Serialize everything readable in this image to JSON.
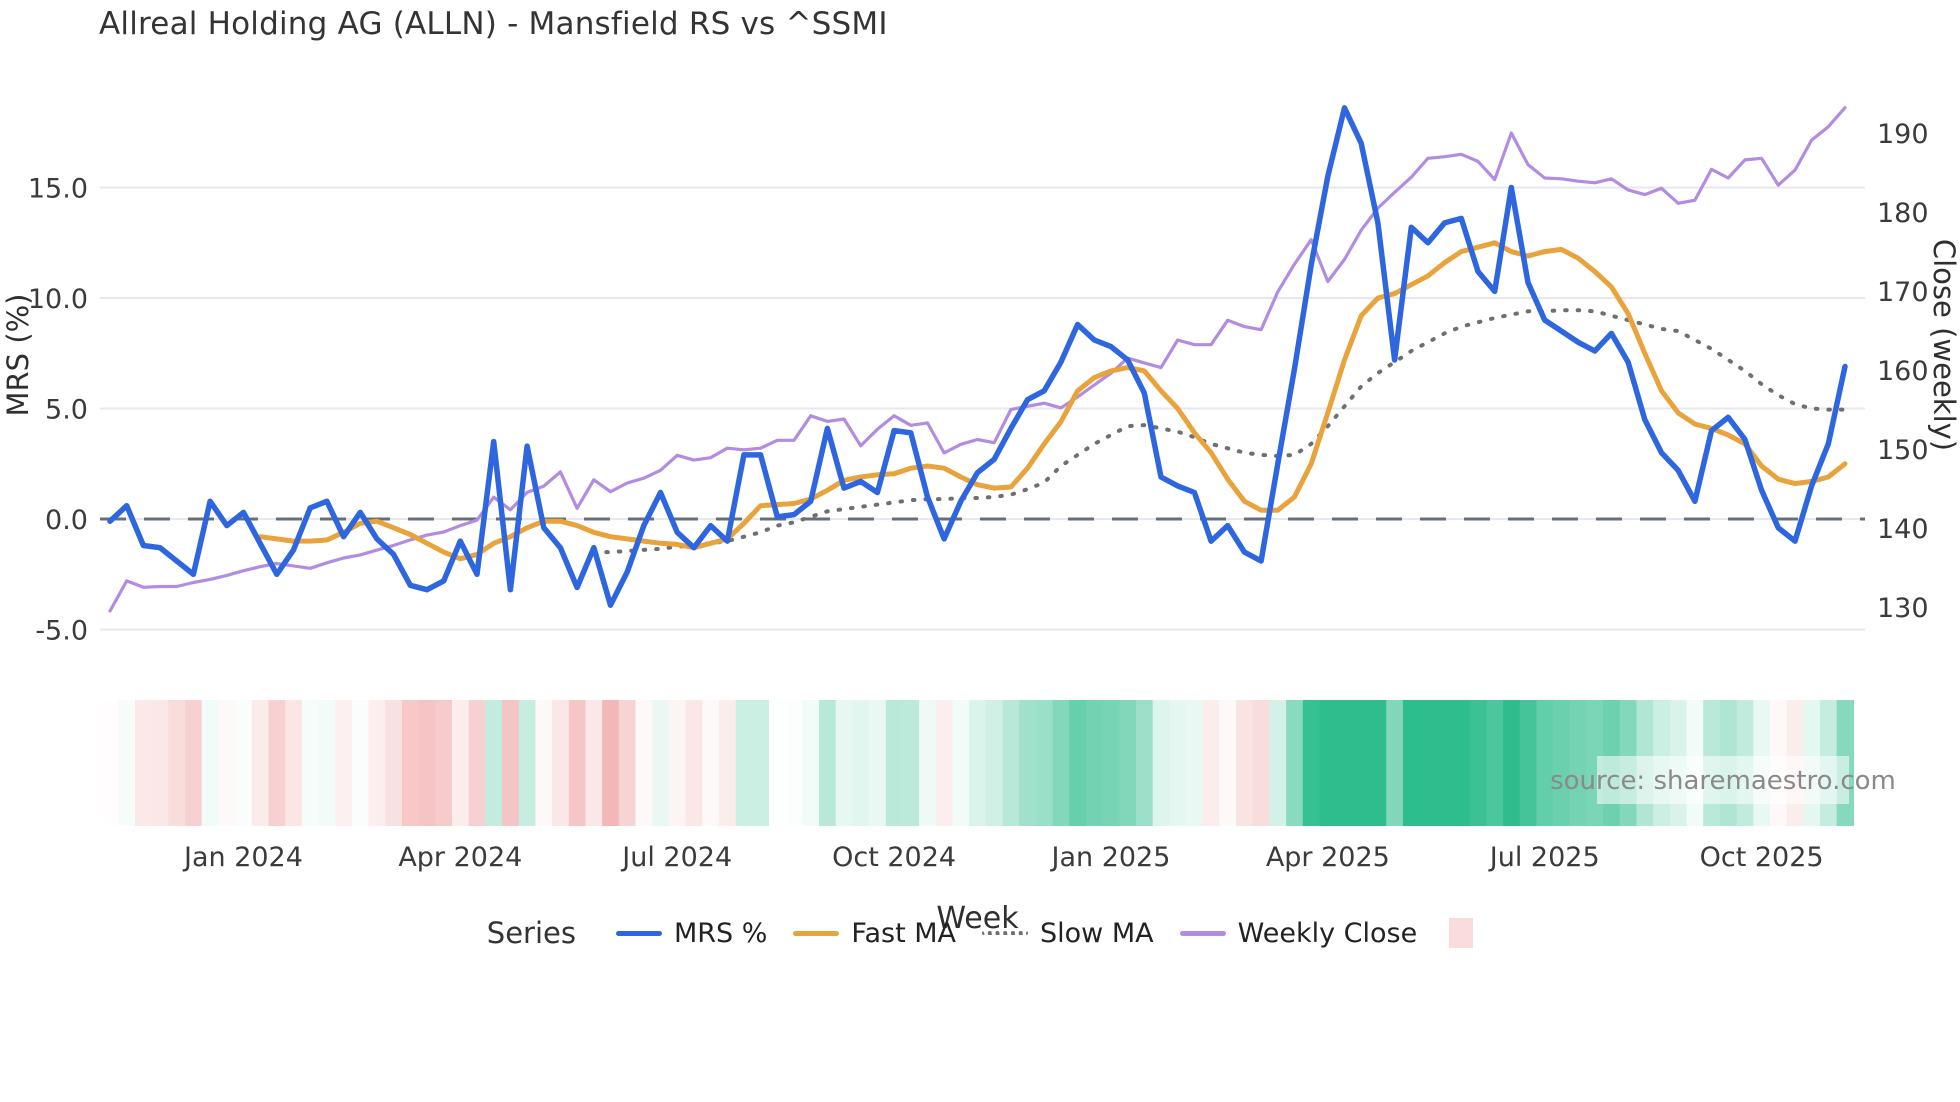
{
  "title": "Allreal Holding AG (ALLN) - Mansfield RS vs ^SSMI",
  "source_text": "source: sharemaestro.com",
  "axes": {
    "left_label": "MRS (%)",
    "right_label": "Close (weekly)",
    "x_label": "Week",
    "left_tick_labels": [
      "-5.0",
      "0.0",
      "5.0",
      "10.0",
      "15.0"
    ],
    "left_tick_values": [
      -5,
      0,
      5,
      10,
      15
    ],
    "right_tick_labels": [
      "130",
      "140",
      "150",
      "160",
      "170",
      "180",
      "190"
    ],
    "right_tick_values": [
      130,
      140,
      150,
      160,
      170,
      180,
      190
    ],
    "x_tick_labels": [
      "Jan 2024",
      "Apr 2024",
      "Jul 2024",
      "Oct 2024",
      "Jan 2025",
      "Apr 2025",
      "Jul 2025",
      "Oct 2025"
    ]
  },
  "legend": {
    "title": "Series",
    "items": [
      {
        "label": "MRS %",
        "color": "#2e66e0",
        "style": "solid"
      },
      {
        "label": "Fast MA",
        "color": "#e8a33c",
        "style": "solid"
      },
      {
        "label": "Slow MA",
        "color": "#6f6f6f",
        "style": "dotted"
      },
      {
        "label": "Weekly Close",
        "color": "#b18ce0",
        "style": "solid"
      }
    ],
    "heatmap_swatch_color": "#fbdcdc"
  },
  "colors": {
    "grid": "#e7e7f0",
    "zero_dash": "#4f5a66",
    "tick_text": "#3b3b3b",
    "axis_title_text": "#2f2f2f",
    "heat_green_full": "#2ebd8d",
    "heat_red_full": "#ec9090",
    "source_text": "#8a8a8a",
    "source_box": "rgba(255,255,255,0.55)"
  },
  "chart_data": {
    "type": "line",
    "title": "Allreal Holding AG (ALLN) - Mansfield RS vs ^SSMI",
    "xlabel": "Week",
    "ylabel_left": "MRS (%)",
    "ylabel_right": "Close (weekly)",
    "x_unit": "weekly points, Nov 2023 - Nov 2025",
    "n_weeks": 105,
    "x_tick_weeks": [
      8,
      21,
      34,
      47,
      60,
      73,
      86,
      99
    ],
    "x_tick_labels": [
      "Jan 2024",
      "Apr 2024",
      "Jul 2024",
      "Oct 2024",
      "Jan 2025",
      "Apr 2025",
      "Jul 2025",
      "Oct 2025"
    ],
    "ylim_left": [
      -6.2,
      20.4
    ],
    "ylim_right": [
      125,
      199
    ],
    "grid": "horizontal-left-ticks",
    "legend_position": "bottom",
    "zero_line": {
      "axis": "left",
      "value": 0,
      "style": "dashed"
    },
    "series": [
      {
        "name": "MRS %",
        "axis": "left",
        "color": "#2e66e0",
        "style": "solid",
        "width": 5.5,
        "values": [
          -0.1,
          0.6,
          -1.2,
          -1.3,
          -1.9,
          -2.5,
          0.8,
          -0.3,
          0.3,
          -1.1,
          -2.5,
          -1.4,
          0.5,
          0.8,
          -0.8,
          0.3,
          -0.9,
          -1.6,
          -3.0,
          -3.2,
          -2.8,
          -1.0,
          -2.5,
          3.5,
          -3.2,
          3.3,
          -0.4,
          -1.3,
          -3.1,
          -1.3,
          -3.9,
          -2.4,
          -0.3,
          1.2,
          -0.6,
          -1.3,
          -0.3,
          -1.0,
          2.9,
          2.9,
          0.1,
          0.2,
          0.8,
          4.1,
          1.4,
          1.7,
          1.2,
          4.0,
          3.9,
          1.0,
          -0.9,
          0.8,
          2.1,
          2.7,
          4.1,
          5.4,
          5.8,
          7.1,
          8.8,
          8.1,
          7.8,
          7.2,
          5.7,
          1.9,
          1.5,
          1.2,
          -1.0,
          -0.3,
          -1.5,
          -1.9,
          2.5,
          6.8,
          11.5,
          15.5,
          18.6,
          17.0,
          13.4,
          7.2,
          13.2,
          12.5,
          13.4,
          13.6,
          11.2,
          10.3,
          15.0,
          10.7,
          9.0,
          8.5,
          8.0,
          7.6,
          8.4,
          7.1,
          4.5,
          3.0,
          2.2,
          0.8,
          4.0,
          4.6,
          3.6,
          1.3,
          -0.4,
          -1.0,
          1.5,
          3.4,
          6.9
        ]
      },
      {
        "name": "Fast MA",
        "axis": "left",
        "color": "#e8a33c",
        "style": "solid",
        "width": 5,
        "values": [
          null,
          null,
          null,
          null,
          null,
          null,
          null,
          null,
          null,
          -0.8,
          -0.9,
          -1.0,
          -1.0,
          -0.95,
          -0.6,
          -0.2,
          -0.1,
          -0.4,
          -0.7,
          -1.1,
          -1.5,
          -1.8,
          -1.6,
          -1.1,
          -0.8,
          -0.4,
          -0.1,
          -0.1,
          -0.3,
          -0.6,
          -0.8,
          -0.9,
          -1.0,
          -1.1,
          -1.15,
          -1.3,
          -1.1,
          -0.9,
          -0.2,
          0.6,
          0.65,
          0.7,
          0.9,
          1.3,
          1.75,
          1.9,
          2.0,
          2.05,
          2.3,
          2.4,
          2.3,
          1.9,
          1.55,
          1.4,
          1.45,
          2.3,
          3.4,
          4.4,
          5.8,
          6.4,
          6.7,
          6.85,
          6.7,
          5.8,
          5.0,
          3.9,
          3.0,
          1.8,
          0.8,
          0.4,
          0.4,
          1.0,
          2.5,
          4.8,
          7.2,
          9.2,
          10.0,
          10.2,
          10.6,
          11.0,
          11.6,
          12.1,
          12.3,
          12.5,
          12.1,
          11.9,
          12.1,
          12.2,
          11.8,
          11.2,
          10.5,
          9.3,
          7.5,
          5.8,
          4.8,
          4.3,
          4.1,
          3.8,
          3.4,
          2.4,
          1.8,
          1.6,
          1.7,
          1.9,
          2.5
        ]
      },
      {
        "name": "Slow MA",
        "axis": "left",
        "color": "#6f6f6f",
        "style": "dotted",
        "width": 4,
        "values": [
          null,
          null,
          null,
          null,
          null,
          null,
          null,
          null,
          null,
          null,
          null,
          null,
          null,
          null,
          null,
          null,
          null,
          null,
          null,
          null,
          null,
          null,
          null,
          null,
          null,
          null,
          null,
          null,
          null,
          -1.5,
          -1.5,
          -1.45,
          -1.4,
          -1.35,
          -1.25,
          -1.2,
          -1.1,
          -1.0,
          -0.8,
          -0.6,
          -0.3,
          -0.15,
          0.1,
          0.35,
          0.45,
          0.55,
          0.65,
          0.75,
          0.85,
          0.9,
          0.9,
          0.95,
          0.95,
          1.0,
          1.1,
          1.35,
          1.65,
          2.4,
          2.9,
          3.4,
          3.8,
          4.2,
          4.25,
          4.1,
          3.95,
          3.7,
          3.4,
          3.2,
          3.0,
          2.9,
          2.85,
          2.9,
          3.4,
          4.2,
          5.1,
          6.0,
          6.6,
          7.1,
          7.6,
          8.0,
          8.4,
          8.7,
          8.9,
          9.1,
          9.25,
          9.4,
          9.4,
          9.45,
          9.45,
          9.4,
          9.2,
          9.0,
          8.8,
          8.6,
          8.5,
          8.1,
          7.7,
          7.2,
          6.7,
          6.1,
          5.6,
          5.2,
          5.0,
          4.95,
          4.95
        ]
      },
      {
        "name": "Weekly Close",
        "axis": "right",
        "color": "#b18ce0",
        "style": "solid",
        "width": 3.2,
        "values": [
          129.5,
          133.3,
          132.5,
          132.6,
          132.6,
          133.1,
          133.5,
          134.0,
          134.6,
          135.1,
          135.5,
          135.2,
          134.9,
          135.6,
          136.2,
          136.6,
          137.2,
          137.8,
          138.5,
          139.1,
          139.5,
          140.3,
          141.0,
          143.9,
          142.3,
          144.5,
          145.3,
          147.1,
          142.5,
          146.1,
          144.6,
          145.7,
          146.3,
          147.3,
          149.2,
          148.6,
          148.9,
          150.1,
          149.9,
          150.1,
          151.1,
          151.1,
          154.2,
          153.5,
          153.8,
          150.4,
          152.5,
          154.2,
          153.0,
          153.3,
          149.5,
          150.6,
          151.2,
          150.8,
          155.0,
          155.4,
          155.8,
          155.2,
          156.6,
          158.1,
          159.6,
          161.5,
          160.9,
          160.3,
          163.8,
          163.2,
          163.2,
          166.3,
          165.5,
          165.1,
          169.9,
          173.4,
          176.5,
          171.2,
          174.0,
          177.7,
          180.5,
          182.5,
          184.4,
          186.8,
          187.0,
          187.3,
          186.4,
          184.1,
          190.0,
          186.0,
          184.3,
          184.2,
          183.9,
          183.7,
          184.2,
          182.8,
          182.2,
          183.0,
          181.1,
          181.5,
          185.4,
          184.3,
          186.6,
          186.8,
          183.4,
          185.3,
          189.1,
          190.8,
          193.2
        ]
      }
    ],
    "heatmap_strip": {
      "description": "weekly relative-strength heat strip below plot; color derived from MRS % value per week (green positive, red negative, intensity by magnitude)",
      "source_series": "MRS %",
      "green_saturation_at": 12,
      "red_saturation_at": 6
    }
  }
}
